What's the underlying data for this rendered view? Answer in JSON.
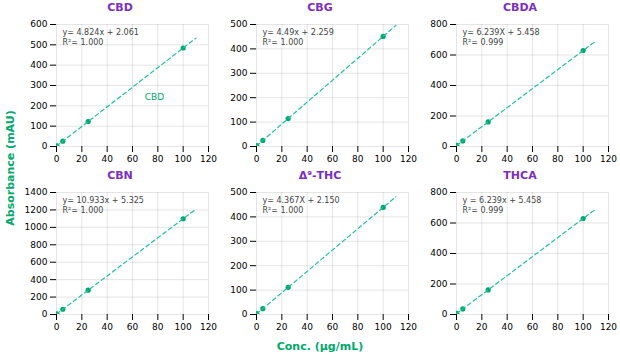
{
  "chart_data": [
    {
      "type": "scatter",
      "title": "CBD",
      "annotations": [
        "y= 4.824x + 2.061\nR²= 1.000",
        "CBD"
      ],
      "series": [
        {
          "type": "scatter",
          "color": "#00a86b",
          "x": [
            0.25,
            5,
            25,
            100
          ],
          "values": [
            3.267,
            26.181,
            122.661,
            484.461
          ]
        },
        {
          "type": "line",
          "line_style": "dashed",
          "color": "#20c0a0",
          "x": [
            0,
            110
          ],
          "values": [
            2.061,
            532.701
          ]
        }
      ],
      "xlim": [
        0,
        120
      ],
      "xticks": [
        0,
        20,
        40,
        60,
        80,
        100,
        120
      ],
      "ylim": [
        0,
        600
      ],
      "yticks": [
        0,
        100,
        200,
        300,
        400,
        500,
        600
      ],
      "grid": true
    },
    {
      "type": "scatter",
      "title": "CBG",
      "annotations": [
        "y= 4.49x + 2.259\nR²= 1.000"
      ],
      "series": [
        {
          "type": "scatter",
          "color": "#00a86b",
          "x": [
            0.25,
            5,
            25,
            100
          ],
          "values": [
            3.3815,
            24.709,
            114.509,
            451.259
          ]
        },
        {
          "type": "line",
          "line_style": "dashed",
          "color": "#20c0a0",
          "x": [
            0,
            110
          ],
          "values": [
            2.259,
            496.159
          ]
        }
      ],
      "xlim": [
        0,
        120
      ],
      "xticks": [
        0,
        20,
        40,
        60,
        80,
        100,
        120
      ],
      "ylim": [
        0,
        500
      ],
      "yticks": [
        0,
        100,
        200,
        300,
        400,
        500
      ],
      "grid": true
    },
    {
      "type": "scatter",
      "title": "CBDA",
      "annotations": [
        "y= 6.239X + 5.458\nR²= 0.999"
      ],
      "series": [
        {
          "type": "scatter",
          "color": "#00a86b",
          "x": [
            0.25,
            5,
            25,
            100
          ],
          "values": [
            7.01775,
            36.653,
            161.433,
            629.358
          ]
        },
        {
          "type": "line",
          "line_style": "dashed",
          "color": "#20c0a0",
          "x": [
            0,
            110
          ],
          "values": [
            5.458,
            691.748
          ]
        }
      ],
      "xlim": [
        0,
        120
      ],
      "xticks": [
        0,
        20,
        40,
        60,
        80,
        100,
        120
      ],
      "ylim": [
        0,
        800
      ],
      "yticks": [
        0,
        200,
        400,
        600,
        800
      ],
      "grid": true
    },
    {
      "type": "scatter",
      "title": "CBN",
      "annotations": [
        "y= 10.933x + 5.325\nR²= 1.000"
      ],
      "series": [
        {
          "type": "scatter",
          "color": "#00a86b",
          "x": [
            0.25,
            5,
            25,
            100
          ],
          "values": [
            8.05825,
            59.99,
            278.65,
            1098.625
          ]
        },
        {
          "type": "line",
          "line_style": "dashed",
          "color": "#20c0a0",
          "x": [
            0,
            110
          ],
          "values": [
            5.325,
            1207.955
          ]
        }
      ],
      "xlim": [
        0,
        120
      ],
      "xticks": [
        0,
        20,
        40,
        60,
        80,
        100,
        120
      ],
      "ylim": [
        0,
        1400
      ],
      "yticks": [
        0,
        200,
        400,
        600,
        800,
        1000,
        1200,
        1400
      ],
      "grid": true
    },
    {
      "type": "scatter",
      "title": "Δ⁹-THC",
      "annotations": [
        "y= 4.367X + 2.150\nR²= 1.000"
      ],
      "series": [
        {
          "type": "scatter",
          "color": "#00a86b",
          "x": [
            0.25,
            5,
            25,
            100
          ],
          "values": [
            3.24175,
            23.985,
            111.325,
            438.85
          ]
        },
        {
          "type": "line",
          "line_style": "dashed",
          "color": "#20c0a0",
          "x": [
            0,
            110
          ],
          "values": [
            2.15,
            482.52
          ]
        }
      ],
      "xlim": [
        0,
        120
      ],
      "xticks": [
        0,
        20,
        40,
        60,
        80,
        100,
        120
      ],
      "ylim": [
        0,
        500
      ],
      "yticks": [
        0,
        100,
        200,
        300,
        400,
        500
      ],
      "grid": true
    },
    {
      "type": "scatter",
      "title": "THCA",
      "annotations": [
        "y = 6.239x + 5.458\nR²= 0.999"
      ],
      "series": [
        {
          "type": "scatter",
          "color": "#00a86b",
          "x": [
            0.25,
            5,
            25,
            100
          ],
          "values": [
            7.01775,
            36.653,
            161.433,
            629.358
          ]
        },
        {
          "type": "line",
          "line_style": "dashed",
          "color": "#20c0a0",
          "x": [
            0,
            110
          ],
          "values": [
            5.458,
            691.748
          ]
        }
      ],
      "xlim": [
        0,
        120
      ],
      "xticks": [
        0,
        20,
        40,
        60,
        80,
        100,
        120
      ],
      "ylim": [
        0,
        800
      ],
      "yticks": [
        0,
        200,
        400,
        600,
        800
      ],
      "grid": true
    }
  ],
  "xlabel": "Conc. (µg/mL)",
  "ylabel": "Absorbance (mAU)"
}
